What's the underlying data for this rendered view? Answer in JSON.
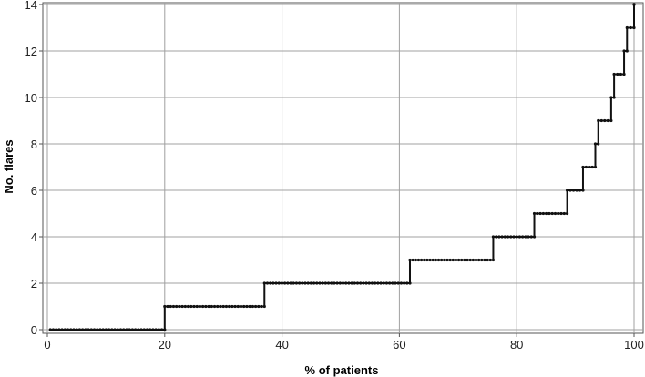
{
  "chart_data": {
    "type": "line",
    "step": true,
    "xlabel": "% of patients",
    "ylabel": "No. flares",
    "xlim": [
      0,
      100
    ],
    "ylim": [
      0,
      14
    ],
    "xticks": [
      "0",
      "20",
      "40",
      "60",
      "80",
      "100"
    ],
    "yticks": [
      "0",
      "2",
      "4",
      "6",
      "8",
      "10",
      "12",
      "14"
    ],
    "grid": true,
    "colors": {
      "line": "#111111",
      "grid": "#a0a0a0",
      "frame": "#555555"
    },
    "series": [
      {
        "levels": [
          {
            "y": 0,
            "x_start": 0.5,
            "x_end": 20.0
          },
          {
            "y": 1,
            "x_start": 20.0,
            "x_end": 37.0
          },
          {
            "y": 2,
            "x_start": 37.0,
            "x_end": 61.8
          },
          {
            "y": 3,
            "x_start": 61.8,
            "x_end": 76.0
          },
          {
            "y": 4,
            "x_start": 76.0,
            "x_end": 83.0
          },
          {
            "y": 5,
            "x_start": 83.0,
            "x_end": 88.6
          },
          {
            "y": 6,
            "x_start": 88.6,
            "x_end": 91.3
          },
          {
            "y": 7,
            "x_start": 91.3,
            "x_end": 93.4
          },
          {
            "y": 8,
            "x_start": 93.4,
            "x_end": 93.9
          },
          {
            "y": 9,
            "x_start": 93.9,
            "x_end": 96.1
          },
          {
            "y": 10,
            "x_start": 96.1,
            "x_end": 96.6
          },
          {
            "y": 11,
            "x_start": 96.6,
            "x_end": 98.3
          },
          {
            "y": 12,
            "x_start": 98.3,
            "x_end": 98.8
          },
          {
            "y": 13,
            "x_start": 98.8,
            "x_end": 100.0
          },
          {
            "y": 14,
            "x_start": 100.0,
            "x_end": 100.0
          }
        ]
      }
    ]
  }
}
